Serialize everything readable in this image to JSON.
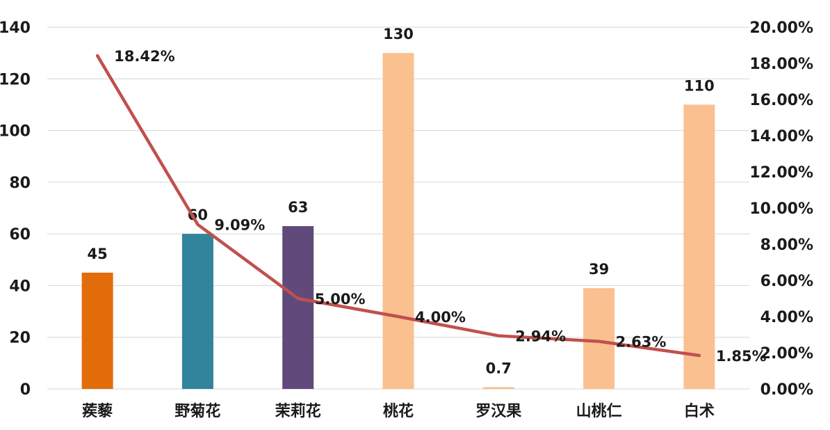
{
  "chart_data": {
    "type": "bar",
    "categories": [
      "蒺藜",
      "野菊花",
      "茉莉花",
      "桃花",
      "罗汉果",
      "山桃仁",
      "白术"
    ],
    "series": [
      {
        "type": "bar",
        "axis": "left",
        "values": [
          45,
          60,
          63,
          130,
          0.7,
          39,
          110
        ],
        "value_labels": [
          "45",
          "60",
          "63",
          "130",
          "0.7",
          "39",
          "110"
        ],
        "colors": [
          "#E36C0A",
          "#31849B",
          "#604A7B",
          "#FAC090",
          "#FAC090",
          "#FAC090",
          "#FAC090"
        ]
      },
      {
        "type": "line",
        "axis": "right",
        "values": [
          18.42,
          9.09,
          5.0,
          4.0,
          2.94,
          2.63,
          1.85
        ],
        "value_labels": [
          "18.42%",
          "9.09%",
          "5.00%",
          "4.00%",
          "2.94%",
          "2.63%",
          "1.85%"
        ],
        "color": "#C0504D"
      }
    ],
    "y_left": {
      "min": 0,
      "max": 140,
      "step": 20,
      "tick_labels": [
        "0",
        "20",
        "40",
        "60",
        "80",
        "100",
        "120",
        "140"
      ]
    },
    "y_right": {
      "min": 0,
      "max": 20,
      "step": 2,
      "tick_labels": [
        "0.00%",
        "2.00%",
        "4.00%",
        "6.00%",
        "8.00%",
        "10.00%",
        "12.00%",
        "14.00%",
        "16.00%",
        "18.00%",
        "20.00%"
      ]
    },
    "grid": true,
    "legend": "none"
  }
}
